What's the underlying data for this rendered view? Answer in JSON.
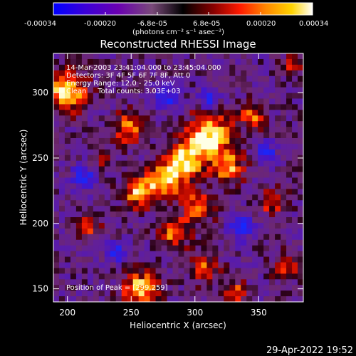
{
  "colorbar": {
    "tick_labels": [
      "-0.00034",
      "-0.00020",
      "-6.8e-05",
      "6.8e-05",
      "0.00020",
      "0.00034"
    ],
    "tick_values": [
      -0.00034,
      -0.0002,
      -6.8e-05,
      6.8e-05,
      0.0002,
      0.00034
    ],
    "range": [
      -0.00034,
      0.00034
    ],
    "unit_label": "(photons cm⁻² s⁻¹ asec⁻²)",
    "colors": [
      "#0000ff",
      "#4a00c8",
      "#7a00a0",
      "#8a3a78",
      "#000000",
      "#7a0000",
      "#ff0000",
      "#ff7a00",
      "#ffcc00",
      "#ffffff"
    ]
  },
  "title": "Reconstructed RHESSI Image",
  "annotations": {
    "time_range": "14-Mar-2003 23:41:04.000 to 23:45:04.000",
    "detectors": "Detectors: 3F 4F 5F 6F 7F 8F, Att 0",
    "energy_range": "Energy Range: 12.0 - 25.0 keV",
    "algorithm": "Clean     Total counts: 3.03E+03",
    "peak": "Position of Peak = [299,259]"
  },
  "x_axis": {
    "label": "Heliocentric X (arcsec)",
    "range": [
      189,
      385
    ],
    "ticks": [
      200,
      250,
      300,
      350
    ]
  },
  "y_axis": {
    "label": "Heliocentric Y (arcsec)",
    "range": [
      140,
      330
    ],
    "ticks": [
      150,
      200,
      250,
      300
    ]
  },
  "timestamp": "29-Apr-2022 19:52"
}
